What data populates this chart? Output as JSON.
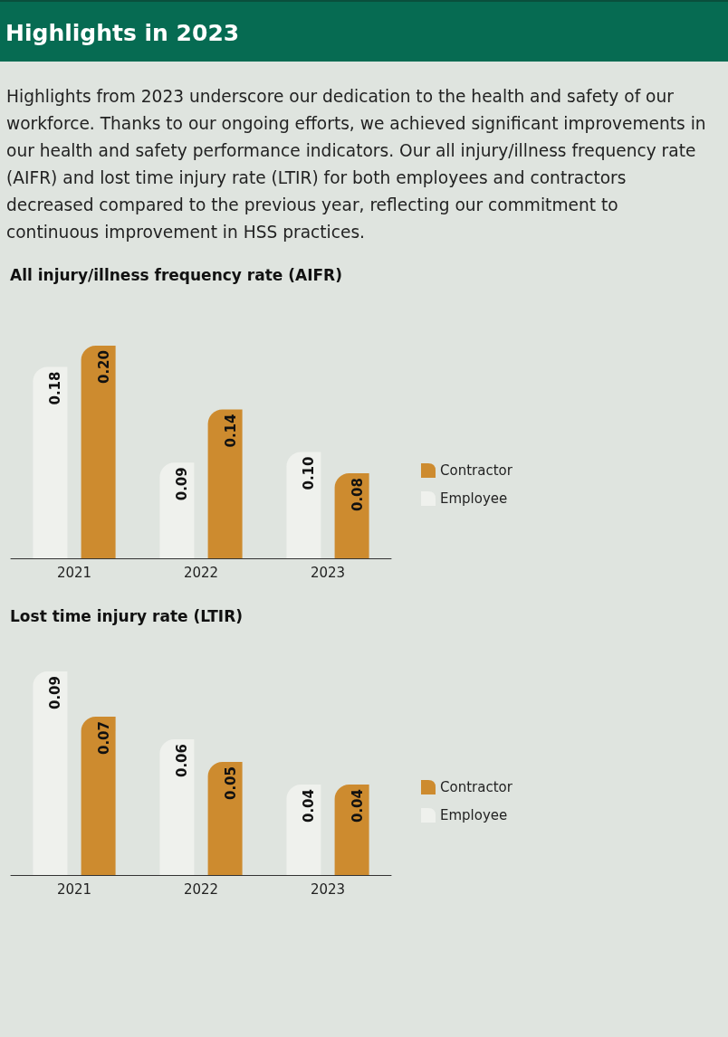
{
  "chart_data": [
    {
      "type": "bar",
      "title": "All injury/illness frequency rate (AIFR)",
      "annotations": [
        "Highlights in 2023",
        "Highlights from 2023 underscore our dedication to the health and safety of our workforce. Thanks to our ongoing efforts, we achieved significant improvements in our health and safety performance indicators. Our all injury/illness frequency rate (AIFR) and lost time injury rate (LTIR) for both employees and contractors decreased compared to the previous year, reflecting our commitment to continuous improvement in HSS practices."
      ],
      "categories": [
        "2021",
        "2022",
        "2023"
      ],
      "series": [
        {
          "name": "Employee",
          "color": "#eff1ed",
          "values": [
            0.18,
            0.09,
            0.1
          ],
          "value_labels": [
            "0.18",
            "0.09",
            "0.10"
          ]
        },
        {
          "name": "Contractor",
          "color": "#cd8b2f",
          "values": [
            0.2,
            0.14,
            0.08
          ],
          "value_labels": [
            "0.20",
            "0.14",
            "0.08"
          ]
        }
      ],
      "legend": "right"
    },
    {
      "type": "bar",
      "title": "Lost time injury rate (LTIR)",
      "categories": [
        "2021",
        "2022",
        "2023"
      ],
      "series": [
        {
          "name": "Employee",
          "color": "#eff1ed",
          "values": [
            0.09,
            0.06,
            0.04
          ],
          "value_labels": [
            "0.09",
            "0.06",
            "0.04"
          ]
        },
        {
          "name": "Contractor",
          "color": "#cd8b2f",
          "values": [
            0.07,
            0.05,
            0.04
          ],
          "value_labels": [
            "0.07",
            "0.05",
            "0.04"
          ]
        }
      ],
      "legend": "right"
    }
  ]
}
